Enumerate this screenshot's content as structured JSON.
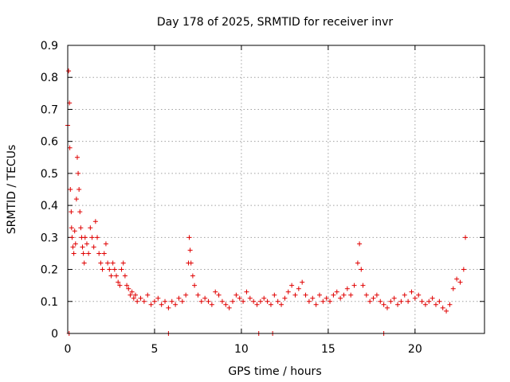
{
  "chart_data": {
    "type": "scatter",
    "title": "Day 178 of 2025, SRMTID for receiver invr",
    "xlabel": "GPS time / hours",
    "ylabel": "SRMTID / TECUs",
    "xlim": [
      0,
      24
    ],
    "ylim": [
      0,
      0.9
    ],
    "xticks": [
      "0",
      "5",
      "10",
      "15",
      "20"
    ],
    "xtick_values": [
      0,
      5,
      10,
      15,
      20
    ],
    "yticks": [
      "0",
      "0.1",
      "0.2",
      "0.3",
      "0.4",
      "0.5",
      "0.6",
      "0.7",
      "0.8",
      "0.9"
    ],
    "ytick_values": [
      0,
      0.1,
      0.2,
      0.3,
      0.4,
      0.5,
      0.6,
      0.7,
      0.8,
      0.9
    ],
    "grid": true,
    "marker": "+",
    "color": "#e00000",
    "series": [
      {
        "name": "SRMTID",
        "x": [
          0.0,
          0.05,
          0.1,
          0.12,
          0.15,
          0.2,
          0.22,
          0.25,
          0.3,
          0.35,
          0.4,
          0.45,
          0.5,
          0.55,
          0.6,
          0.65,
          0.7,
          0.75,
          0.8,
          0.85,
          0.9,
          0.95,
          1.0,
          1.1,
          1.2,
          1.3,
          1.4,
          1.5,
          1.6,
          1.7,
          1.8,
          1.9,
          2.0,
          2.1,
          2.2,
          2.3,
          2.4,
          2.5,
          2.6,
          2.7,
          2.8,
          2.9,
          3.0,
          3.1,
          3.2,
          3.3,
          3.4,
          3.5,
          3.6,
          3.7,
          3.8,
          3.9,
          4.0,
          4.2,
          4.4,
          4.6,
          4.8,
          5.0,
          5.2,
          5.4,
          5.6,
          5.8,
          6.0,
          6.2,
          6.4,
          6.6,
          6.8,
          6.95,
          7.0,
          7.05,
          7.1,
          7.2,
          7.3,
          7.5,
          7.7,
          7.9,
          8.1,
          8.3,
          8.5,
          8.7,
          8.9,
          9.1,
          9.3,
          9.5,
          9.7,
          9.9,
          10.1,
          10.3,
          10.5,
          10.7,
          10.9,
          11.1,
          11.3,
          11.5,
          11.7,
          11.9,
          12.1,
          12.3,
          12.5,
          12.7,
          12.9,
          13.1,
          13.3,
          13.5,
          13.7,
          13.9,
          14.1,
          14.3,
          14.5,
          14.7,
          14.9,
          15.1,
          15.3,
          15.5,
          15.7,
          15.9,
          16.1,
          16.3,
          16.5,
          16.7,
          16.8,
          16.9,
          17.0,
          17.2,
          17.4,
          17.6,
          17.8,
          18.0,
          18.2,
          18.4,
          18.6,
          18.8,
          19.0,
          19.2,
          19.4,
          19.6,
          19.8,
          20.0,
          20.2,
          20.4,
          20.6,
          20.8,
          21.0,
          21.2,
          21.4,
          21.6,
          21.8,
          22.0,
          22.2,
          22.4,
          22.6,
          22.8,
          22.9,
          0.08,
          5.8,
          11.0,
          11.8,
          18.2
        ],
        "y": [
          0.65,
          0.82,
          0.72,
          0.58,
          0.45,
          0.38,
          0.33,
          0.3,
          0.27,
          0.25,
          0.32,
          0.28,
          0.42,
          0.55,
          0.5,
          0.45,
          0.38,
          0.33,
          0.3,
          0.27,
          0.25,
          0.22,
          0.3,
          0.28,
          0.25,
          0.33,
          0.3,
          0.27,
          0.35,
          0.3,
          0.25,
          0.22,
          0.2,
          0.25,
          0.28,
          0.22,
          0.2,
          0.18,
          0.22,
          0.2,
          0.18,
          0.16,
          0.15,
          0.2,
          0.22,
          0.18,
          0.15,
          0.14,
          0.12,
          0.13,
          0.11,
          0.12,
          0.1,
          0.11,
          0.1,
          0.12,
          0.09,
          0.1,
          0.11,
          0.09,
          0.1,
          0.08,
          0.1,
          0.09,
          0.11,
          0.1,
          0.12,
          0.22,
          0.3,
          0.26,
          0.22,
          0.18,
          0.15,
          0.12,
          0.1,
          0.11,
          0.1,
          0.09,
          0.13,
          0.12,
          0.1,
          0.09,
          0.08,
          0.1,
          0.12,
          0.11,
          0.1,
          0.13,
          0.11,
          0.1,
          0.09,
          0.1,
          0.11,
          0.1,
          0.09,
          0.12,
          0.1,
          0.09,
          0.11,
          0.13,
          0.15,
          0.12,
          0.14,
          0.16,
          0.12,
          0.1,
          0.11,
          0.09,
          0.12,
          0.1,
          0.11,
          0.1,
          0.12,
          0.13,
          0.11,
          0.12,
          0.14,
          0.12,
          0.15,
          0.22,
          0.28,
          0.2,
          0.15,
          0.12,
          0.1,
          0.11,
          0.12,
          0.1,
          0.09,
          0.08,
          0.1,
          0.11,
          0.09,
          0.1,
          0.12,
          0.1,
          0.13,
          0.11,
          0.12,
          0.1,
          0.09,
          0.1,
          0.11,
          0.09,
          0.1,
          0.08,
          0.07,
          0.09,
          0.14,
          0.17,
          0.16,
          0.2,
          0.3,
          0.0,
          0.0,
          0.0,
          0.0,
          0.0
        ]
      }
    ]
  }
}
